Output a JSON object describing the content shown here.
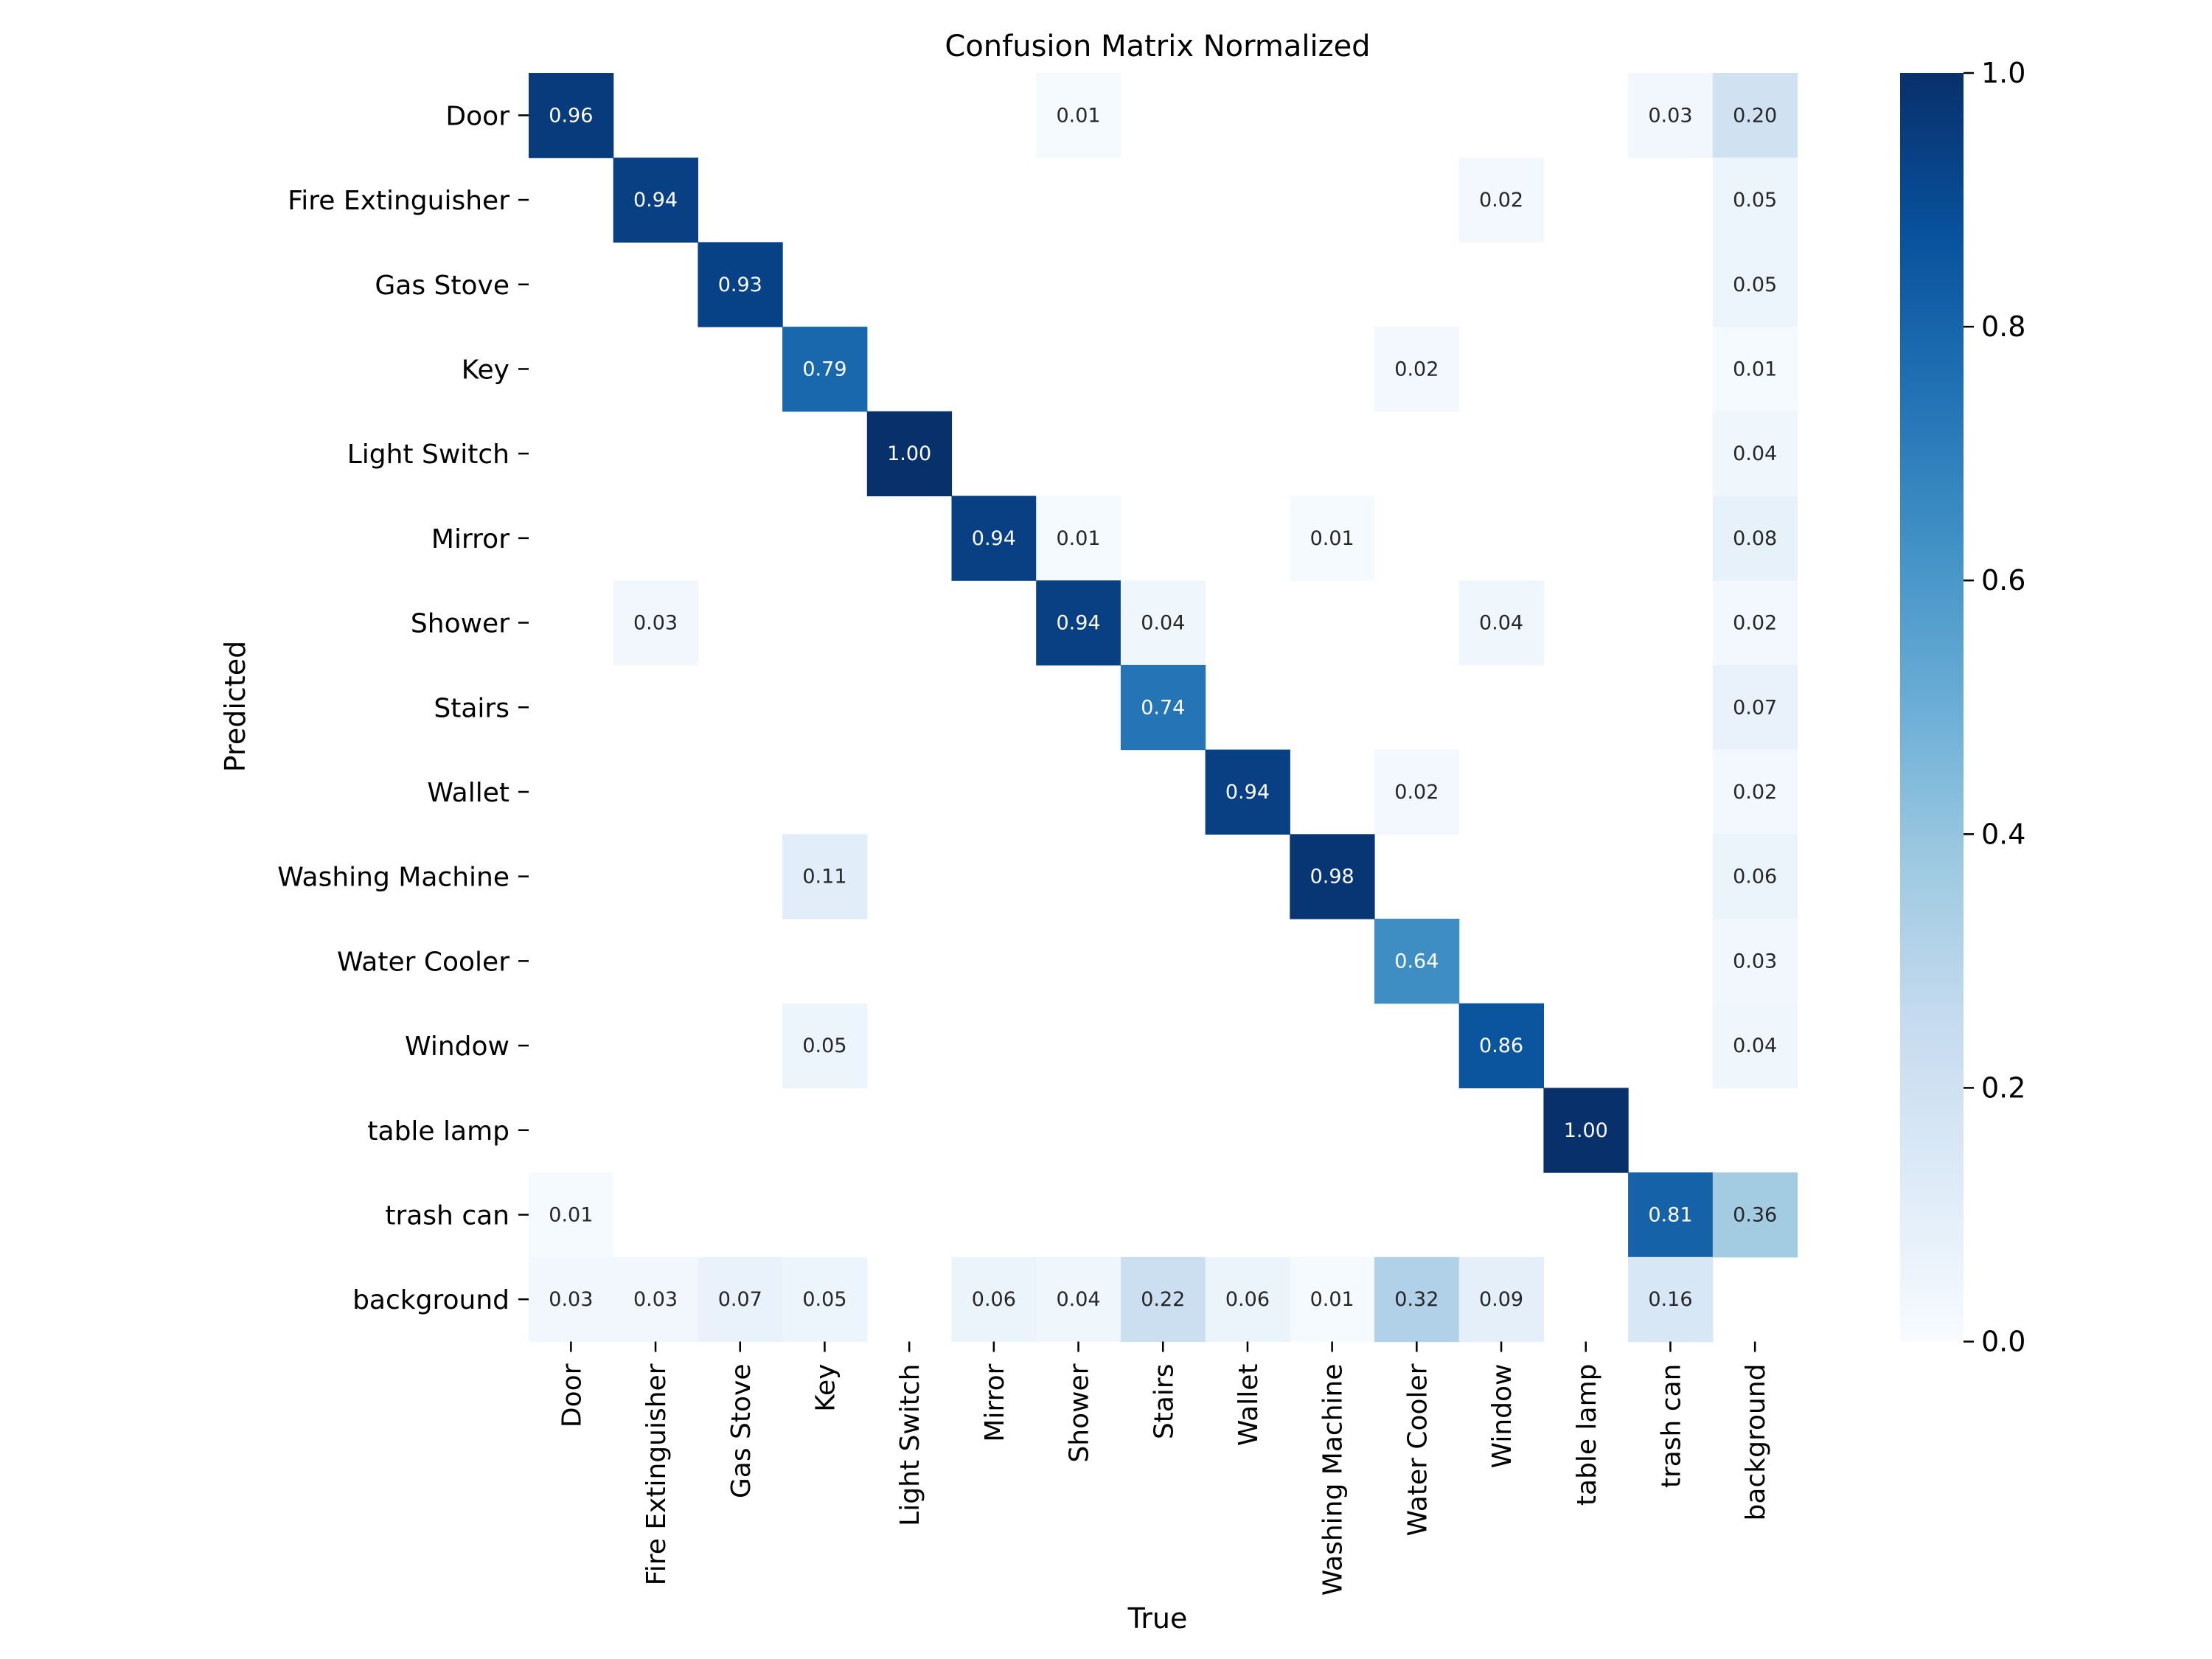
{
  "chart_data": {
    "type": "heatmap",
    "title": "Confusion Matrix Normalized",
    "xlabel": "True",
    "ylabel": "Predicted",
    "x_categories": [
      "Door",
      "Fire Extinguisher",
      "Gas Stove",
      "Key",
      "Light Switch",
      "Mirror",
      "Shower",
      "Stairs",
      "Wallet",
      "Washing Machine",
      "Water Cooler",
      "Window",
      "table lamp",
      "trash can",
      "background"
    ],
    "y_categories": [
      "Door",
      "Fire Extinguisher",
      "Gas Stove",
      "Key",
      "Light Switch",
      "Mirror",
      "Shower",
      "Stairs",
      "Wallet",
      "Washing Machine",
      "Water Cooler",
      "Window",
      "table lamp",
      "trash can",
      "background"
    ],
    "values": [
      [
        0.96,
        0,
        0,
        0,
        0,
        0,
        0.01,
        0,
        0,
        0,
        0,
        0,
        0,
        0.03,
        0.2
      ],
      [
        0,
        0.94,
        0,
        0,
        0,
        0,
        0,
        0,
        0,
        0,
        0,
        0.02,
        0,
        0,
        0.05
      ],
      [
        0,
        0,
        0.93,
        0,
        0,
        0,
        0,
        0,
        0,
        0,
        0,
        0,
        0,
        0,
        0.05
      ],
      [
        0,
        0,
        0,
        0.79,
        0,
        0,
        0,
        0,
        0,
        0,
        0.02,
        0,
        0,
        0,
        0.01
      ],
      [
        0,
        0,
        0,
        0,
        1.0,
        0,
        0,
        0,
        0,
        0,
        0,
        0,
        0,
        0,
        0.04
      ],
      [
        0,
        0,
        0,
        0,
        0,
        0.94,
        0.01,
        0,
        0,
        0.01,
        0,
        0,
        0,
        0,
        0.08
      ],
      [
        0,
        0.03,
        0,
        0,
        0,
        0,
        0.94,
        0.04,
        0,
        0,
        0,
        0.04,
        0,
        0,
        0.02
      ],
      [
        0,
        0,
        0,
        0,
        0,
        0,
        0,
        0.74,
        0,
        0,
        0,
        0,
        0,
        0,
        0.07
      ],
      [
        0,
        0,
        0,
        0,
        0,
        0,
        0,
        0,
        0.94,
        0,
        0.02,
        0,
        0,
        0,
        0.02
      ],
      [
        0,
        0,
        0,
        0.11,
        0,
        0,
        0,
        0,
        0,
        0.98,
        0,
        0,
        0,
        0,
        0.06
      ],
      [
        0,
        0,
        0,
        0,
        0,
        0,
        0,
        0,
        0,
        0,
        0.64,
        0,
        0,
        0,
        0.03
      ],
      [
        0,
        0,
        0,
        0.05,
        0,
        0,
        0,
        0,
        0,
        0,
        0,
        0.86,
        0,
        0,
        0.04
      ],
      [
        0,
        0,
        0,
        0,
        0,
        0,
        0,
        0,
        0,
        0,
        0,
        0,
        1.0,
        0,
        0
      ],
      [
        0.01,
        0,
        0,
        0,
        0,
        0,
        0,
        0,
        0,
        0,
        0,
        0,
        0,
        0.81,
        0.36
      ],
      [
        0.03,
        0.03,
        0.07,
        0.05,
        0,
        0.06,
        0.04,
        0.22,
        0.06,
        0.01,
        0.32,
        0.09,
        0,
        0.16,
        0
      ]
    ],
    "value_range": [
      0.0,
      1.0
    ],
    "colormap": "Blues",
    "colorbar": {
      "ticks": [
        0.0,
        0.2,
        0.4,
        0.6,
        0.8,
        1.0
      ],
      "tick_labels": [
        "0.0",
        "0.2",
        "0.4",
        "0.6",
        "0.8",
        "1.0"
      ]
    },
    "blank_zero_cells": true,
    "grid": false
  }
}
